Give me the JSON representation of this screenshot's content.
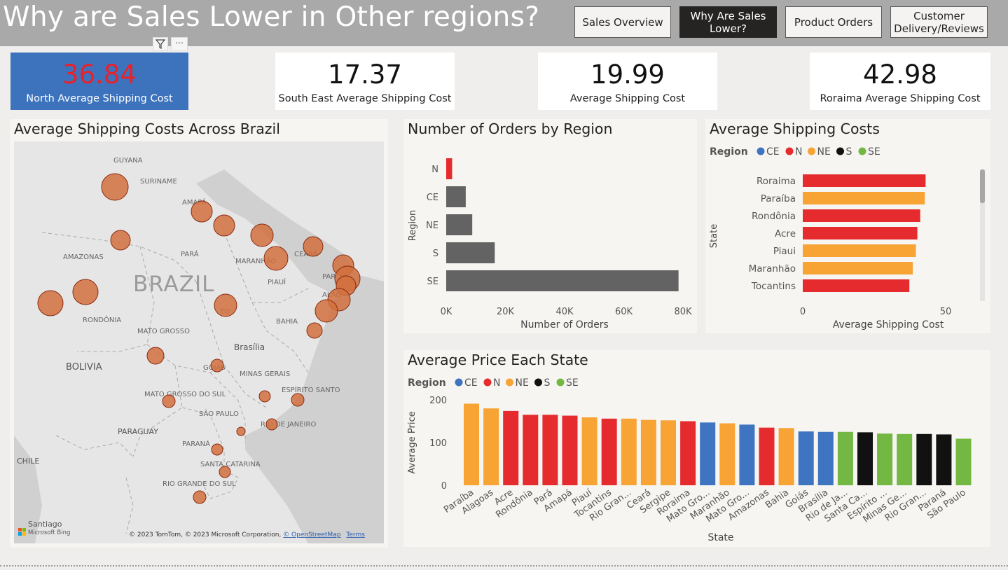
{
  "header": {
    "title": "Why are Sales Lower in Other regions?",
    "nav": [
      {
        "label": "Sales Overview",
        "active": false
      },
      {
        "label": "Why Are Sales Lower?",
        "active": true
      },
      {
        "label": "Product Orders",
        "active": false
      },
      {
        "label": "Customer Delivery/Reviews",
        "active": false
      }
    ]
  },
  "visual_header": {
    "more_label": "⋯"
  },
  "kpis": [
    {
      "value": "36.84",
      "label": "North Average Shipping Cost"
    },
    {
      "value": "17.37",
      "label": "South East Average Shipping Cost"
    },
    {
      "value": "19.99",
      "label": "Average Shipping Cost"
    },
    {
      "value": "42.98",
      "label": "Roraima Average Shipping Cost"
    }
  ],
  "map": {
    "title": "Average Shipping Costs Across Brazil",
    "country_label": "BRAZIL",
    "place_labels": [
      "GUYANA",
      "SURINAME",
      "AMAPÁ",
      "AMAZONAS",
      "PARÁ",
      "MARANHÃO",
      "CEARÁ",
      "PIAUÍ",
      "PAR",
      "ALAG",
      "TO",
      "RONDÔNIA",
      "MATO GROSSO",
      "BAHIA",
      "Brasília",
      "BOLIVIA",
      "GOIÁS",
      "MINAS GERAIS",
      "ESPÍRITO SANTO",
      "MATO GROSSO DO SUL",
      "SÃO PAULO",
      "RIO DE JANEIRO",
      "PARAGUAY",
      "PARANÁ",
      "SANTA CATARINA",
      "RIO GRANDE DO SUL",
      "CHILE",
      "Santiago"
    ],
    "bing_label": "Microsoft Bing",
    "copyright": "© 2023 TomTom, © 2023 Microsoft Corporation, ",
    "osm_link": "© OpenStreetMap",
    "terms_link": "Terms"
  },
  "legend_region": {
    "title": "Region",
    "items": [
      {
        "name": "CE",
        "color": "#3f74c0"
      },
      {
        "name": "N",
        "color": "#e52b2e"
      },
      {
        "name": "NE",
        "color": "#f7a435"
      },
      {
        "name": "S",
        "color": "#111111"
      },
      {
        "name": "SE",
        "color": "#72b843"
      }
    ]
  },
  "colors": {
    "bar_grey": "#636363",
    "map_bubble": "#d2703e",
    "map_land": "#e5e5e5",
    "map_water": "#cfcfcf"
  },
  "chart_data": [
    {
      "type": "bar",
      "orientation": "horizontal",
      "title": "Number of Orders by Region",
      "xlabel": "Number of Orders",
      "ylabel": "Region",
      "categories": [
        "N",
        "CE",
        "NE",
        "S",
        "SE"
      ],
      "values": [
        2000,
        6600,
        8800,
        16400,
        78500
      ],
      "colors": [
        "#e52b2e",
        "#636363",
        "#636363",
        "#636363",
        "#636363"
      ],
      "xlim": [
        0,
        80000
      ],
      "xticks": [
        "0K",
        "20K",
        "40K",
        "60K",
        "80K"
      ]
    },
    {
      "type": "bar",
      "orientation": "horizontal",
      "title": "Average Shipping Costs",
      "xlabel": "Average Shipping Cost",
      "ylabel": "State",
      "categories": [
        "Roraima",
        "Paraíba",
        "Rondônia",
        "Acre",
        "Piaui",
        "Maranhão",
        "Tocantins"
      ],
      "values": [
        42.98,
        42.7,
        41.1,
        40.1,
        39.6,
        38.5,
        37.3
      ],
      "regions": [
        "N",
        "NE",
        "N",
        "N",
        "NE",
        "NE",
        "N"
      ],
      "xlim": [
        0,
        65
      ],
      "xticks": [
        "0",
        "50"
      ]
    },
    {
      "type": "bar",
      "title": "Average Price Each State",
      "xlabel": "State",
      "ylabel": "Average Price",
      "categories": [
        "Paraíba",
        "Alagoas",
        "Acre",
        "Rondônia",
        "Pará",
        "Amapá",
        "Piauí",
        "Tocantins",
        "Rio Gran...",
        "Ceará",
        "Sergipe",
        "Roraima",
        "Mato Gro...",
        "Maranhão",
        "Mato Gro...",
        "Amazonas",
        "Bahia",
        "Goiás",
        "Brasília",
        "Rio de Ja...",
        "Santa Ca...",
        "Espírito ...",
        "Minas Ge...",
        "Rio Gran...",
        "Paraná",
        "São Paulo"
      ],
      "values": [
        191,
        180,
        174,
        165,
        165,
        163,
        159,
        156,
        156,
        153,
        152,
        150,
        147,
        145,
        142,
        135,
        134,
        126,
        125,
        125,
        124,
        121,
        120,
        120,
        119,
        109
      ],
      "regions": [
        "NE",
        "NE",
        "N",
        "N",
        "N",
        "N",
        "NE",
        "N",
        "NE",
        "NE",
        "NE",
        "N",
        "CE",
        "NE",
        "CE",
        "N",
        "NE",
        "CE",
        "CE",
        "SE",
        "S",
        "SE",
        "SE",
        "S",
        "S",
        "SE"
      ],
      "ylim": [
        0,
        210
      ],
      "yticks": [
        "0",
        "100",
        "200"
      ]
    }
  ]
}
